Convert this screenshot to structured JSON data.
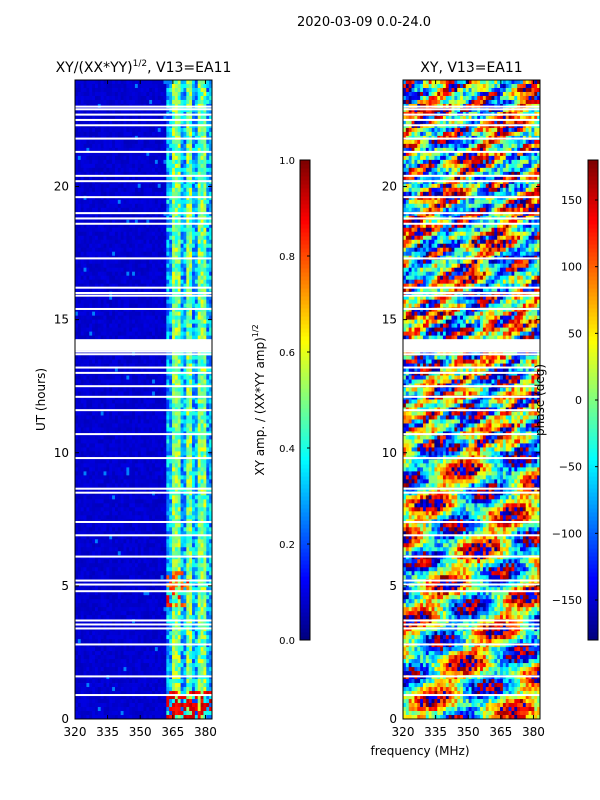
{
  "suptitle": "2020-03-09 0.0-24.0",
  "common_xlabel": "frequency (MHz)",
  "colormap": "jet",
  "colors": {
    "background": "#ffffff",
    "axis": "#000000",
    "gap": "#ffffff"
  },
  "chart_data": [
    {
      "type": "heatmap",
      "title": "XY/(XX*YY)",
      "title_superscript": "1/2",
      "title_suffix": ", V13=EA11",
      "xlabel": "",
      "ylabel": "UT (hours)",
      "xlim": [
        320,
        383
      ],
      "ylim": [
        0,
        24
      ],
      "xticks": [
        "320",
        "335",
        "350",
        "365",
        "380"
      ],
      "xtick_values": [
        320,
        335,
        350,
        365,
        380
      ],
      "yticks": [
        "0",
        "5",
        "10",
        "15",
        "20"
      ],
      "ytick_values": [
        0,
        5,
        10,
        15,
        20
      ],
      "colorbar": {
        "label": "XY amp. / (XX*YY amp)",
        "label_superscript": "1/2",
        "range": [
          0.0,
          1.0
        ],
        "ticks": [
          "0.0",
          "0.2",
          "0.4",
          "0.6",
          "0.8",
          "1.0"
        ],
        "tick_values": [
          0.0,
          0.2,
          0.4,
          0.6,
          0.8,
          1.0
        ]
      },
      "low_band_mhz": [
        320,
        362
      ],
      "high_band_mhz": [
        362,
        383
      ],
      "low_band_level": 0.08,
      "high_band_level": 0.45,
      "flagged_ut": [
        0.9,
        1.6,
        2.8,
        3.4,
        3.55,
        3.7,
        4.8,
        5.05,
        5.2,
        6.1,
        6.9,
        7.4,
        8.5,
        8.65,
        9.8,
        10.7,
        11.6,
        12.1,
        12.5,
        13.0,
        13.2,
        13.7,
        13.8,
        13.9,
        14.0,
        14.1,
        14.2,
        15.4,
        15.9,
        16.0,
        16.2,
        17.3,
        18.6,
        18.8,
        19.0,
        19.6,
        20.2,
        20.4,
        21.3,
        21.8,
        22.3,
        22.5,
        22.7,
        22.9,
        23.0
      ]
    },
    {
      "type": "heatmap",
      "title": "XY, V13=EA11",
      "xlabel": "",
      "ylabel": "",
      "xlim": [
        320,
        383
      ],
      "ylim": [
        0,
        24
      ],
      "xticks": [
        "320",
        "335",
        "350",
        "365",
        "380"
      ],
      "xtick_values": [
        320,
        335,
        350,
        365,
        380
      ],
      "yticks": [
        "0",
        "5",
        "10",
        "15",
        "20"
      ],
      "ytick_values": [
        0,
        5,
        10,
        15,
        20
      ],
      "colorbar": {
        "label": "phase (deg)",
        "range": [
          -180,
          180
        ],
        "ticks": [
          "−150",
          "−100",
          "−50",
          "0",
          "50",
          "100",
          "150"
        ],
        "tick_values": [
          -150,
          -100,
          -50,
          0,
          50,
          100,
          150
        ]
      },
      "flagged_ut": [
        0.9,
        1.6,
        2.8,
        3.4,
        3.55,
        3.7,
        4.8,
        5.05,
        5.2,
        6.1,
        6.9,
        7.4,
        8.5,
        8.65,
        9.8,
        10.7,
        11.6,
        12.1,
        12.5,
        13.0,
        13.2,
        13.7,
        13.8,
        13.9,
        14.0,
        14.1,
        14.2,
        15.4,
        15.9,
        16.0,
        16.2,
        17.3,
        18.6,
        18.8,
        19.0,
        19.6,
        20.2,
        20.4,
        21.3,
        21.8,
        22.3,
        22.5,
        22.7,
        22.9,
        23.0
      ]
    }
  ]
}
